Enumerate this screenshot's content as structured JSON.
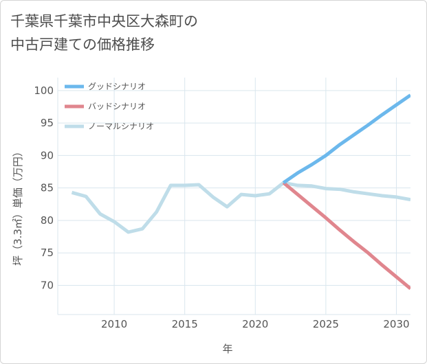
{
  "title": {
    "line1": "千葉県千葉市中央区大森町の",
    "line2": "中古戸建ての価格推移"
  },
  "chart_data": {
    "type": "line",
    "xlabel": "年",
    "ylabel": "坪（3.3㎡）単価（万円）",
    "xlim": [
      2006,
      2031
    ],
    "ylim": [
      65.5,
      102
    ],
    "xticks": [
      2010,
      2015,
      2020,
      2025,
      2030
    ],
    "yticks": [
      70,
      75,
      80,
      85,
      90,
      95,
      100
    ],
    "grid": true,
    "legend_position": "top-left",
    "series": [
      {
        "name": "グッドシナリオ",
        "color": "#6cb8ec",
        "x": [
          2022,
          2023,
          2024,
          2025,
          2026,
          2027,
          2028,
          2029,
          2030,
          2031
        ],
        "y": [
          85.8,
          87.3,
          88.6,
          90.0,
          91.7,
          93.2,
          94.7,
          96.3,
          97.8,
          99.3
        ]
      },
      {
        "name": "バッドシナリオ",
        "color": "#e0868e",
        "x": [
          2022,
          2023,
          2024,
          2025,
          2026,
          2027,
          2028,
          2029,
          2030,
          2031
        ],
        "y": [
          85.8,
          84.0,
          82.2,
          80.4,
          78.5,
          76.7,
          75.0,
          73.1,
          71.3,
          69.5
        ]
      },
      {
        "name": "ノーマルシナリオ",
        "color": "#bfdde9",
        "x": [
          2007,
          2008,
          2009,
          2010,
          2011,
          2012,
          2013,
          2014,
          2015,
          2016,
          2017,
          2018,
          2019,
          2020,
          2021,
          2022,
          2023,
          2024,
          2025,
          2026,
          2027,
          2028,
          2029,
          2030,
          2031
        ],
        "y": [
          84.3,
          83.7,
          81.0,
          79.8,
          78.2,
          78.7,
          81.3,
          85.4,
          85.4,
          85.5,
          83.6,
          82.1,
          84.0,
          83.8,
          84.1,
          85.8,
          85.4,
          85.3,
          84.9,
          84.8,
          84.4,
          84.1,
          83.8,
          83.6,
          83.2
        ]
      }
    ]
  }
}
